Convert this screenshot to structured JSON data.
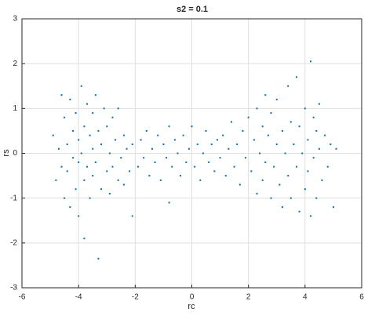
{
  "chart_data": {
    "type": "scatter",
    "title": "s2 = 0.1",
    "x_label": "rc",
    "y_label": "rs",
    "xlim": [
      -6,
      6
    ],
    "ylim": [
      -3,
      3
    ],
    "xticks": [
      -6,
      -4,
      -2,
      0,
      2,
      4,
      6
    ],
    "yticks": [
      -3,
      -2,
      -1,
      0,
      1,
      2,
      3
    ],
    "grid": true,
    "x": [
      -4.9,
      -4.8,
      -4.7,
      -4.6,
      -4.6,
      -4.5,
      -4.5,
      -4.4,
      -4.4,
      -4.3,
      -4.3,
      -4.2,
      -4.2,
      -4.1,
      -4.1,
      -4.0,
      -4.0,
      -4.0,
      -3.9,
      -3.9,
      -3.8,
      -3.8,
      -3.8,
      -3.7,
      -3.7,
      -3.6,
      -3.6,
      -3.5,
      -3.5,
      -3.5,
      -3.4,
      -3.4,
      -3.3,
      -3.3,
      -3.2,
      -3.2,
      -3.1,
      -3.0,
      -3.0,
      -2.9,
      -2.9,
      -2.8,
      -2.8,
      -2.7,
      -2.6,
      -2.6,
      -2.5,
      -2.4,
      -2.4,
      -2.3,
      -2.2,
      -2.1,
      -2.1,
      -1.9,
      -1.8,
      -1.7,
      -1.6,
      -1.5,
      -1.4,
      -1.3,
      -1.2,
      -1.1,
      -1.0,
      -0.9,
      -0.8,
      -0.8,
      -0.7,
      -0.6,
      -0.5,
      -0.4,
      -0.3,
      -0.2,
      -0.1,
      0.0,
      0.1,
      0.2,
      0.3,
      0.4,
      0.5,
      0.6,
      0.7,
      0.8,
      0.9,
      1.0,
      1.1,
      1.2,
      1.3,
      1.4,
      1.5,
      1.6,
      1.7,
      1.8,
      1.9,
      2.0,
      2.1,
      2.2,
      2.3,
      2.3,
      2.4,
      2.5,
      2.5,
      2.6,
      2.6,
      2.7,
      2.8,
      2.8,
      2.9,
      3.0,
      3.0,
      3.1,
      3.2,
      3.2,
      3.3,
      3.4,
      3.4,
      3.5,
      3.5,
      3.6,
      3.7,
      3.7,
      3.8,
      3.8,
      3.9,
      4.0,
      4.0,
      4.1,
      4.1,
      4.2,
      4.2,
      4.3,
      4.3,
      4.4,
      4.4,
      4.5,
      4.5,
      4.6,
      4.7,
      4.8,
      4.9,
      5.0,
      5.1
    ],
    "series": [
      {
        "color": "#0b6fa4",
        "values": [
          0.4,
          -0.6,
          0.1,
          1.3,
          -0.3,
          0.8,
          -1.0,
          0.2,
          -0.4,
          1.2,
          -1.2,
          0.5,
          -0.1,
          -0.8,
          0.9,
          0.3,
          -1.4,
          -0.2,
          1.5,
          0.0,
          -0.6,
          0.6,
          -1.9,
          1.1,
          -0.3,
          0.4,
          -1.0,
          0.9,
          -0.5,
          0.1,
          1.3,
          -0.2,
          -2.35,
          0.5,
          -0.8,
          0.2,
          1.0,
          -0.4,
          0.6,
          0.0,
          -0.9,
          0.8,
          -0.3,
          0.3,
          -0.6,
          1.0,
          -0.1,
          0.4,
          -0.7,
          0.1,
          -0.4,
          0.2,
          -1.4,
          -0.3,
          0.3,
          -0.1,
          0.5,
          -0.5,
          0.1,
          -0.2,
          0.4,
          -0.6,
          0.2,
          -0.1,
          0.6,
          -1.1,
          -0.3,
          0.3,
          0.0,
          -0.5,
          0.4,
          -0.2,
          0.1,
          0.6,
          -0.3,
          0.2,
          -0.6,
          0.0,
          0.5,
          -0.2,
          0.2,
          -0.4,
          0.3,
          -0.1,
          0.4,
          -0.5,
          0.1,
          0.7,
          -0.3,
          0.2,
          -0.7,
          0.5,
          -0.1,
          0.8,
          -0.4,
          0.3,
          -0.9,
          1.0,
          0.0,
          -0.6,
          0.6,
          1.3,
          -0.2,
          0.4,
          -1.0,
          0.9,
          -0.3,
          0.2,
          1.2,
          -0.7,
          0.5,
          -1.2,
          0.0,
          1.5,
          -0.5,
          0.7,
          -1.0,
          0.2,
          -0.3,
          1.7,
          -1.3,
          0.6,
          0.0,
          1.0,
          -0.8,
          0.3,
          -0.4,
          2.05,
          -1.4,
          0.8,
          -0.1,
          0.5,
          -1.0,
          1.1,
          0.1,
          -0.6,
          0.4,
          -0.3,
          0.2,
          -1.2,
          0.1
        ]
      }
    ]
  }
}
